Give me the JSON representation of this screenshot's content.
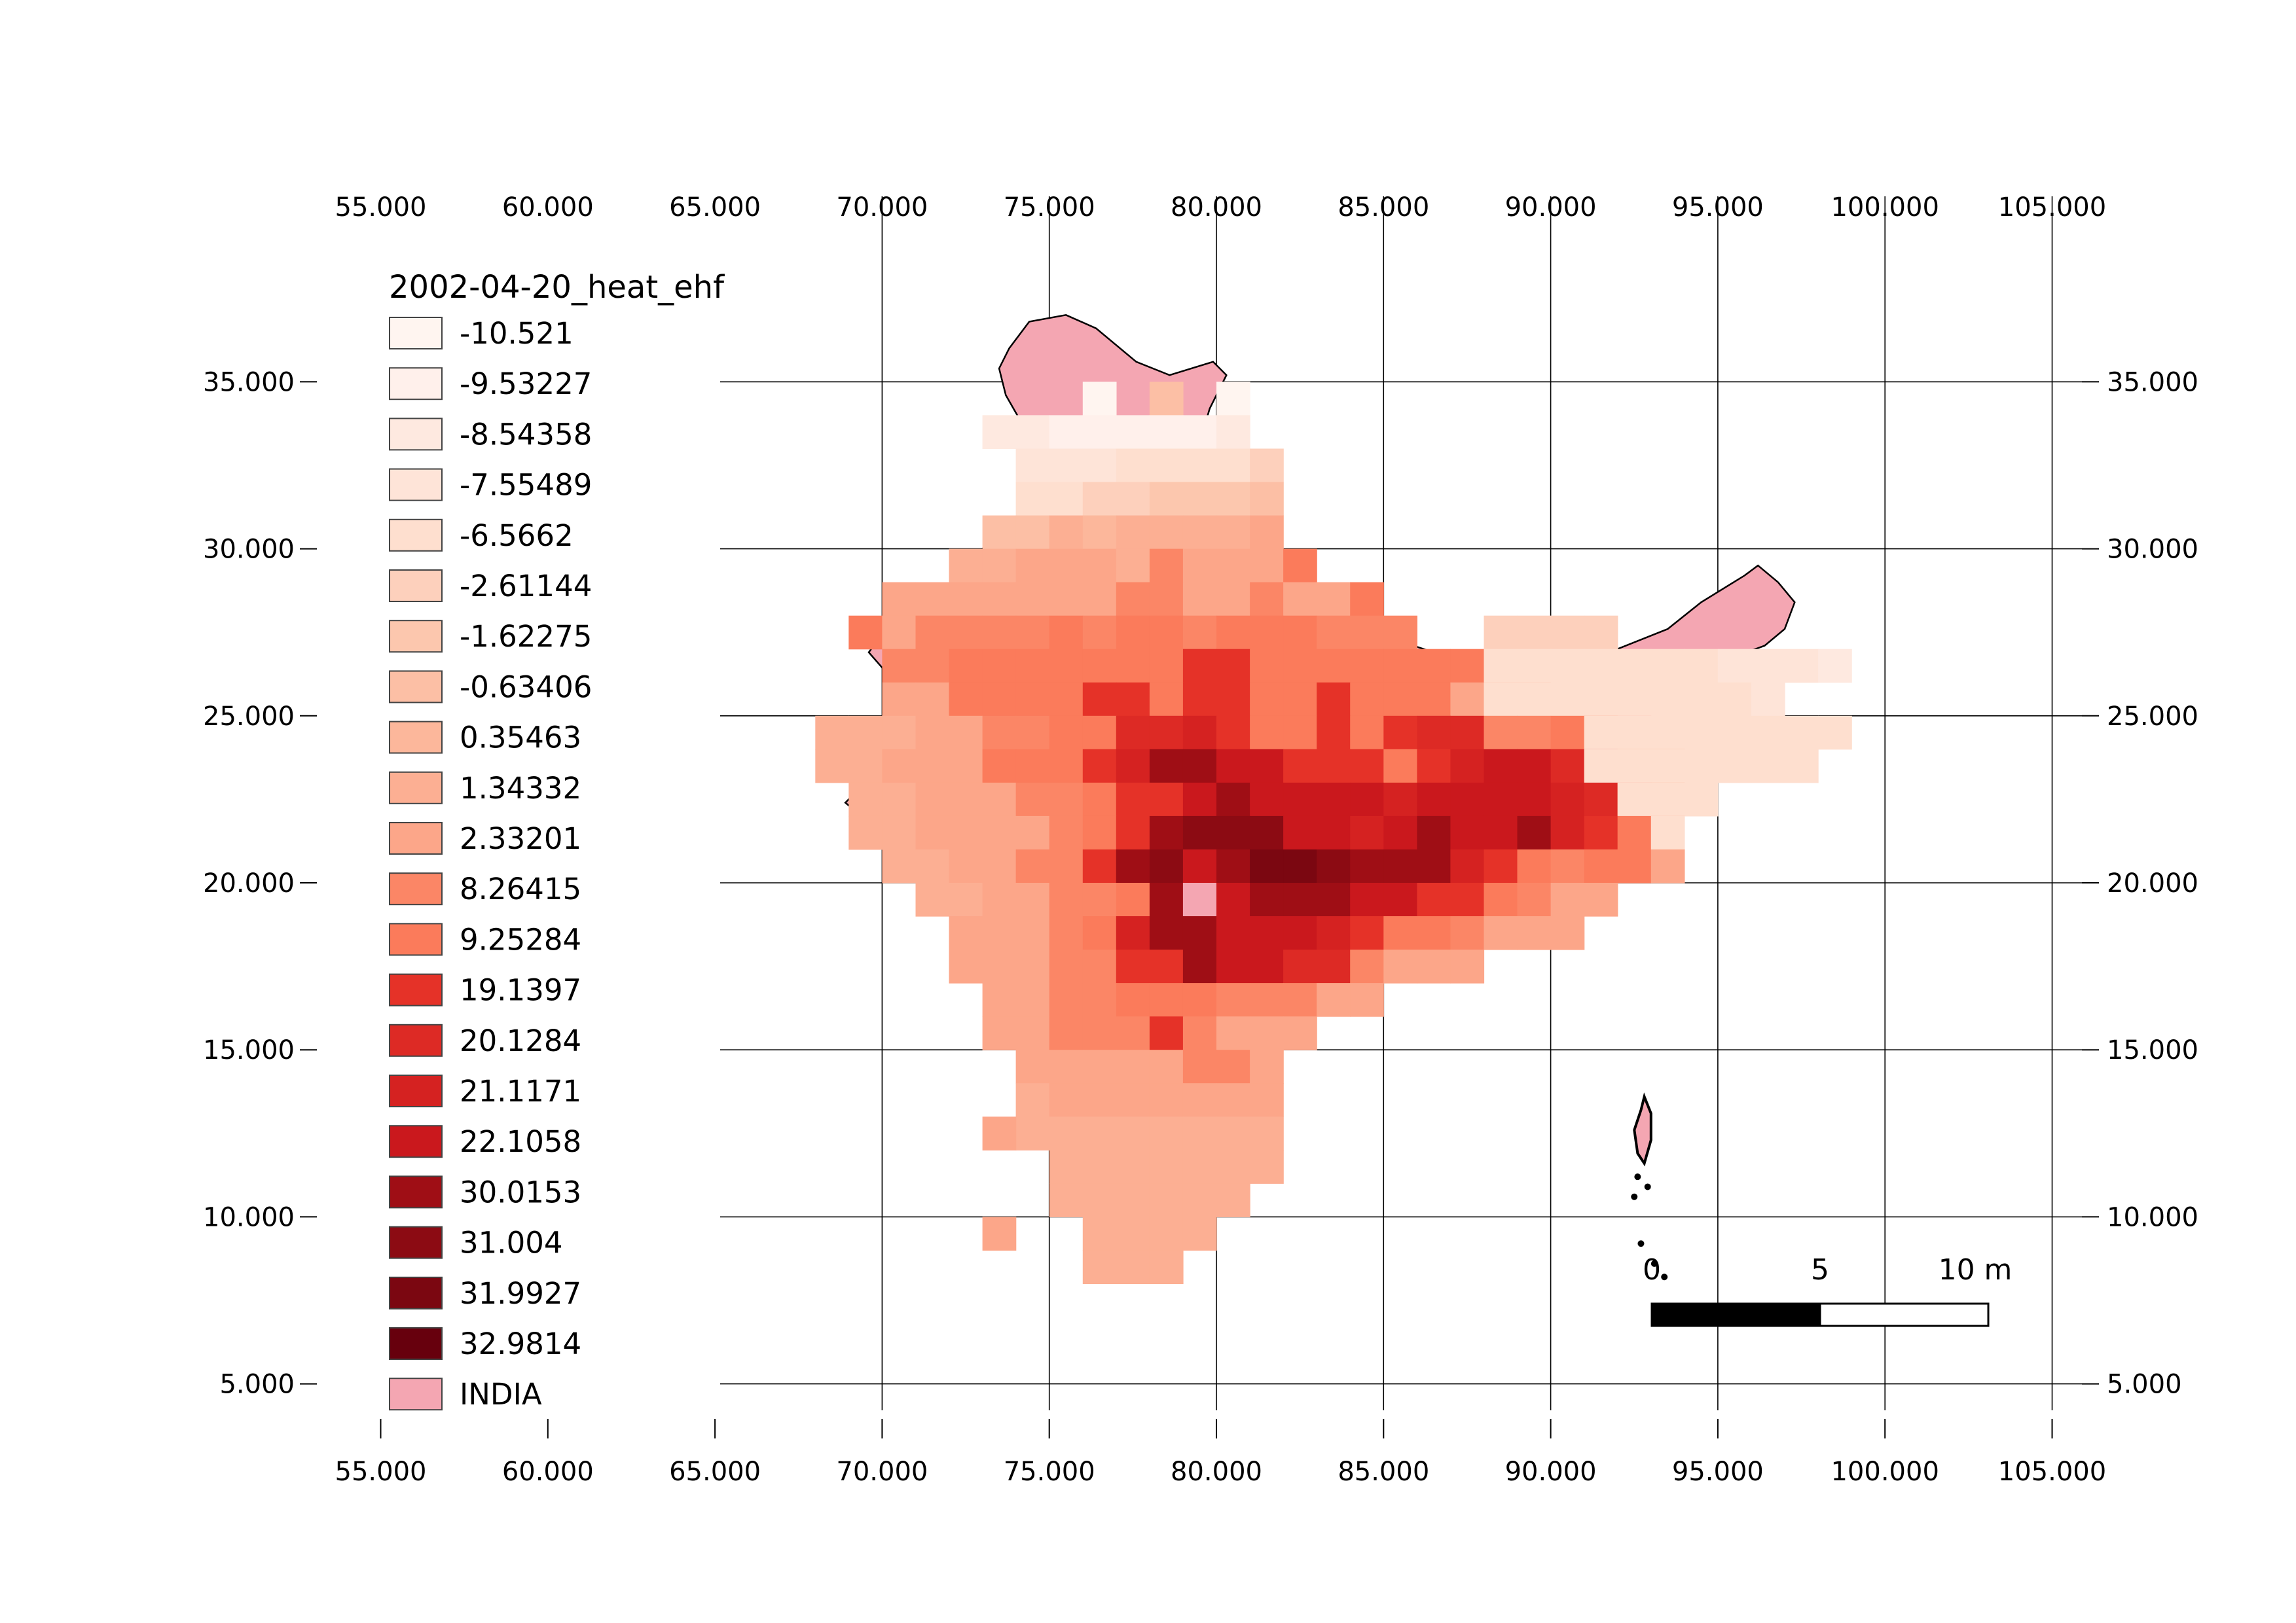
{
  "map": {
    "layer_name": "2002-04-20_heat_ehf",
    "lon_ticks": [
      "55.000",
      "60.000",
      "65.000",
      "70.000",
      "75.000",
      "80.000",
      "85.000",
      "90.000",
      "95.000",
      "100.000",
      "105.000"
    ],
    "lat_ticks": [
      "35.000",
      "30.000",
      "25.000",
      "20.000",
      "15.000",
      "10.000",
      "5.000"
    ],
    "extent": {
      "lon_min": 50.3,
      "lon_max": 109.7,
      "lat_min": 3.1,
      "lat_max": 37.6
    }
  },
  "legend": {
    "title": "2002-04-20_heat_ehf",
    "items": [
      {
        "label": "-10.521",
        "color": "#fff5f0"
      },
      {
        "label": "-9.53227",
        "color": "#fff0eb"
      },
      {
        "label": "-8.54358",
        "color": "#fee9e0"
      },
      {
        "label": "-7.55489",
        "color": "#fee4d8"
      },
      {
        "label": "-6.5662",
        "color": "#fedfcf"
      },
      {
        "label": "-2.61144",
        "color": "#fdd0bc"
      },
      {
        "label": "-1.62275",
        "color": "#fcc7ae"
      },
      {
        "label": "-0.63406",
        "color": "#fcbfa5"
      },
      {
        "label": "0.35463",
        "color": "#fcb79b"
      },
      {
        "label": "1.34332",
        "color": "#fcaf93"
      },
      {
        "label": "2.33201",
        "color": "#fca689"
      },
      {
        "label": "8.26415",
        "color": "#fb8666"
      },
      {
        "label": "9.25284",
        "color": "#fb7b5b"
      },
      {
        "label": "19.1397",
        "color": "#e53228"
      },
      {
        "label": "20.1284",
        "color": "#dd2a25"
      },
      {
        "label": "21.1171",
        "color": "#d52221"
      },
      {
        "label": "22.1058",
        "color": "#ca181d"
      },
      {
        "label": "30.0153",
        "color": "#9f0e15"
      },
      {
        "label": "31.004",
        "color": "#8c0b13"
      },
      {
        "label": "31.9927",
        "color": "#7b0711"
      },
      {
        "label": "32.9814",
        "color": "#67000d"
      },
      {
        "label": "INDIA",
        "color": "#f4a6b2"
      }
    ]
  },
  "scale_bar": {
    "labels": [
      "0",
      "5",
      "10 m"
    ]
  },
  "colors": {
    "india": "#f4a6b2",
    "border": "#000000",
    "grid": "#000000"
  }
}
